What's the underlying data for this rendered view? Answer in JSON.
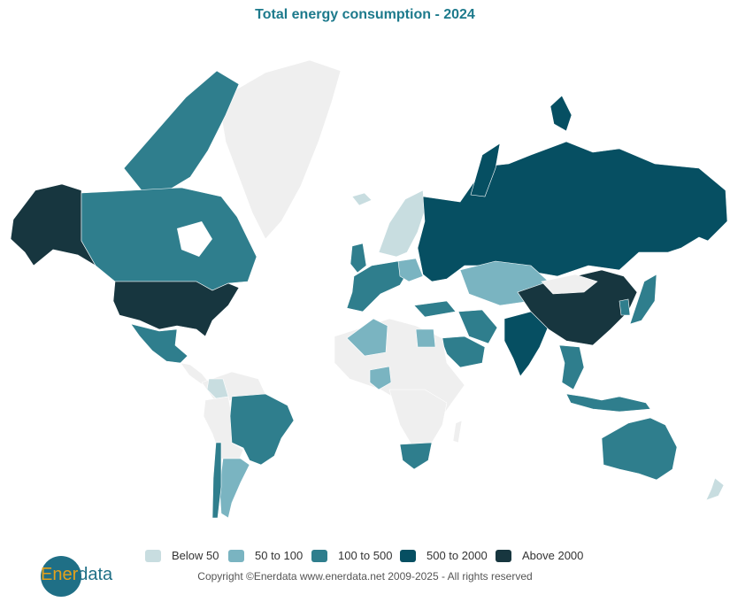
{
  "title": "Total energy consumption - 2024",
  "legend": [
    {
      "label": "Below 50",
      "color": "#c8dde0"
    },
    {
      "label": "50 to 100",
      "color": "#7ab4c1"
    },
    {
      "label": "100 to 500",
      "color": "#2f7e8d"
    },
    {
      "label": "500 to 2000",
      "color": "#064f62"
    },
    {
      "label": "Above 2000",
      "color": "#17363f"
    }
  ],
  "no_data_color": "#efefef",
  "logo": {
    "part1": "Ener",
    "part2": "data"
  },
  "copyright": "Copyright ©Enerdata www.enerdata.net 2009-2025 - All rights reserved"
}
